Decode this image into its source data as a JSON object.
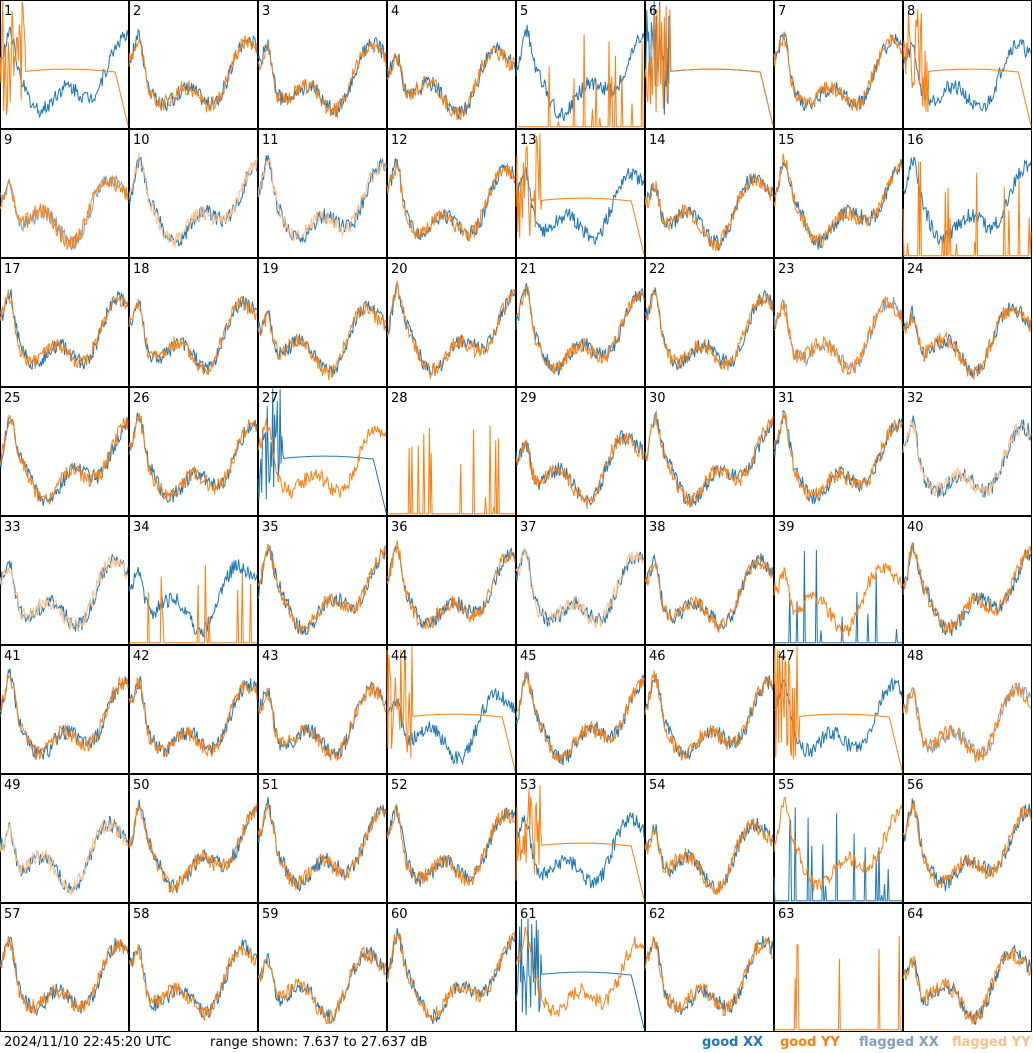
{
  "timestamp": "2024/11/10 22:45:20 UTC",
  "range_text": "range shown: 7.637 to 27.637 dB",
  "legend": [
    {
      "label": "good XX",
      "color": "#1f77b4"
    },
    {
      "label": "good YY",
      "color": "#ff7f0e"
    },
    {
      "label": "flagged XX",
      "color": "#7f9fbf"
    },
    {
      "label": "flagged YY",
      "color": "#ffbf87"
    }
  ],
  "chart_data": {
    "type": "line",
    "ylim": [
      7.637,
      27.637
    ],
    "grid_layout": "8x8",
    "panels": [
      "1",
      "2",
      "3",
      "4",
      "5",
      "6",
      "7",
      "8",
      "9",
      "10",
      "11",
      "12",
      "13",
      "14",
      "15",
      "16",
      "17",
      "18",
      "19",
      "20",
      "21",
      "22",
      "23",
      "24",
      "25",
      "26",
      "27",
      "28",
      "29",
      "30",
      "31",
      "32",
      "33",
      "34",
      "35",
      "36",
      "37",
      "38",
      "39",
      "40",
      "41",
      "42",
      "43",
      "44",
      "45",
      "46",
      "47",
      "48",
      "49",
      "50",
      "51",
      "52",
      "53",
      "54",
      "55",
      "56",
      "57",
      "58",
      "59",
      "60",
      "61",
      "62",
      "63",
      "64"
    ]
  }
}
